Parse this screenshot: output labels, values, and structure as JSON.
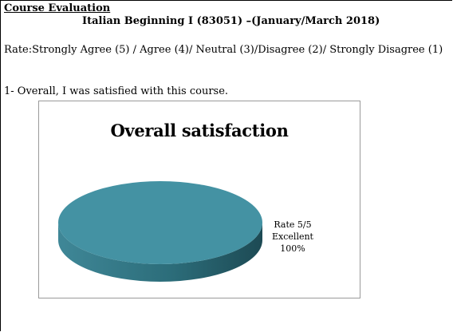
{
  "document": {
    "title": "Course Evaluation",
    "course": "Italian Beginning I (83051) –(January/March 2018)",
    "rating_scale": "Rate:Strongly Agree (5) / Agree (4)/ Neutral (3)/Disagree (2)/ Strongly Disagree (1)",
    "question": "1- Overall, I was satisfied with this course."
  },
  "chart_data": {
    "type": "pie",
    "title": "Overall satisfaction",
    "slices": [
      {
        "label_line1": "Rate 5/5",
        "label_line2": "Excellent",
        "label_line3": "100%",
        "value": 100,
        "color": "#4492a3"
      }
    ],
    "style_3d": true,
    "side_color": "#2a6470"
  }
}
